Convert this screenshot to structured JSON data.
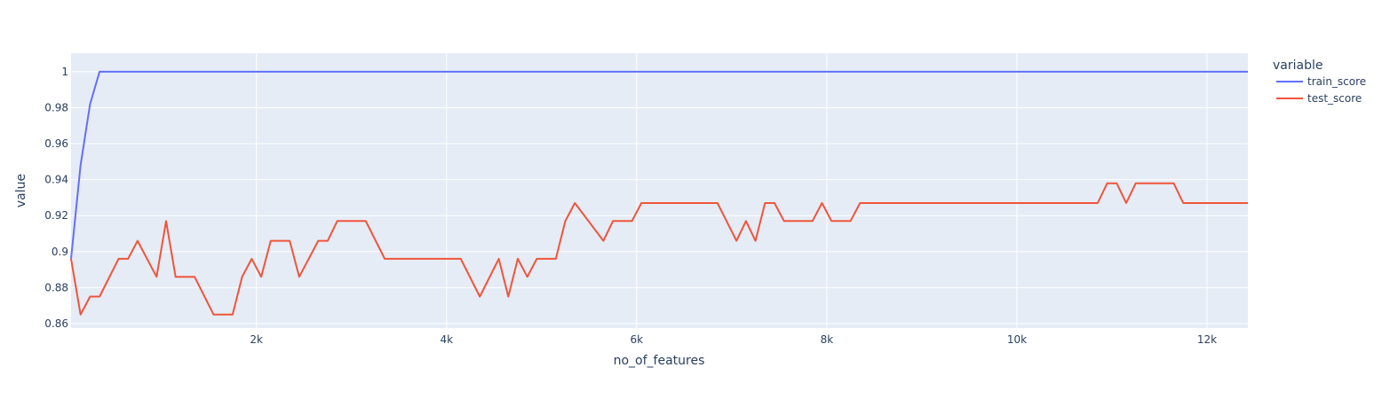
{
  "chart_data": {
    "type": "line",
    "xlabel": "no_of_features",
    "ylabel": "value",
    "xlim": [
      50,
      12430
    ],
    "ylim": [
      0.8575,
      1.0103
    ],
    "x_ticks": [
      2000,
      4000,
      6000,
      8000,
      10000,
      12000
    ],
    "x_tick_labels": [
      "2k",
      "4k",
      "6k",
      "8k",
      "10k",
      "12k"
    ],
    "y_ticks": [
      0.86,
      0.88,
      0.9,
      0.92,
      0.94,
      0.96,
      0.98,
      1.0
    ],
    "y_tick_labels": [
      "0.86",
      "0.88",
      "0.9",
      "0.92",
      "0.94",
      "0.96",
      "0.98",
      "1"
    ],
    "grid": true,
    "plot_bg": "#e5ecf6",
    "legend": {
      "title": "variable",
      "position": "right"
    },
    "series": [
      {
        "name": "train_score",
        "color": "#636efa",
        "points": [
          [
            50,
            0.896
          ],
          [
            150,
            0.948
          ],
          [
            250,
            0.982
          ],
          [
            350,
            1.0
          ],
          [
            12430,
            1.0
          ]
        ]
      },
      {
        "name": "test_score",
        "color": "#ef553b",
        "points": [
          [
            50,
            0.896
          ],
          [
            150,
            0.865
          ],
          [
            250,
            0.875
          ],
          [
            350,
            0.875
          ],
          [
            550,
            0.896
          ],
          [
            650,
            0.896
          ],
          [
            750,
            0.906
          ],
          [
            950,
            0.886
          ],
          [
            1050,
            0.917
          ],
          [
            1150,
            0.886
          ],
          [
            1350,
            0.886
          ],
          [
            1550,
            0.865
          ],
          [
            1750,
            0.865
          ],
          [
            1850,
            0.886
          ],
          [
            1950,
            0.896
          ],
          [
            2050,
            0.886
          ],
          [
            2150,
            0.906
          ],
          [
            2350,
            0.906
          ],
          [
            2450,
            0.886
          ],
          [
            2650,
            0.906
          ],
          [
            2750,
            0.906
          ],
          [
            2850,
            0.917
          ],
          [
            3150,
            0.917
          ],
          [
            3350,
            0.896
          ],
          [
            4150,
            0.896
          ],
          [
            4350,
            0.875
          ],
          [
            4550,
            0.896
          ],
          [
            4650,
            0.875
          ],
          [
            4750,
            0.896
          ],
          [
            4850,
            0.886
          ],
          [
            4950,
            0.896
          ],
          [
            5150,
            0.896
          ],
          [
            5250,
            0.917
          ],
          [
            5350,
            0.927
          ],
          [
            5650,
            0.906
          ],
          [
            5750,
            0.917
          ],
          [
            5950,
            0.917
          ],
          [
            6050,
            0.927
          ],
          [
            6850,
            0.927
          ],
          [
            7050,
            0.906
          ],
          [
            7150,
            0.917
          ],
          [
            7250,
            0.906
          ],
          [
            7350,
            0.927
          ],
          [
            7450,
            0.927
          ],
          [
            7550,
            0.917
          ],
          [
            7850,
            0.917
          ],
          [
            7950,
            0.927
          ],
          [
            8050,
            0.917
          ],
          [
            8250,
            0.917
          ],
          [
            8350,
            0.927
          ],
          [
            10850,
            0.927
          ],
          [
            10950,
            0.938
          ],
          [
            11050,
            0.938
          ],
          [
            11150,
            0.927
          ],
          [
            11250,
            0.938
          ],
          [
            11650,
            0.938
          ],
          [
            11750,
            0.927
          ],
          [
            12430,
            0.927
          ]
        ]
      }
    ]
  }
}
